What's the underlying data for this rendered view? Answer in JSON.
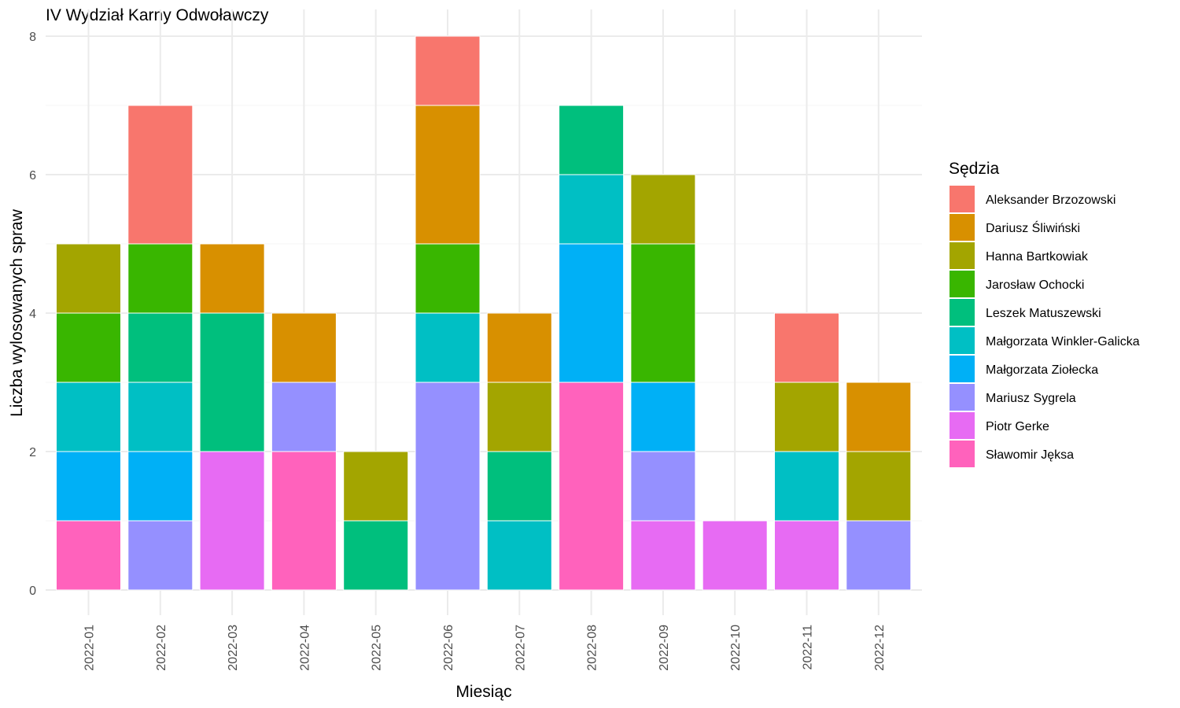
{
  "chart_data": {
    "type": "bar",
    "stacked": true,
    "title": "IV Wydział Karny Odwoławczy",
    "xlabel": "Miesiąc",
    "ylabel": "Liczba wylosowanych spraw",
    "ylim": [
      0,
      8
    ],
    "yticks": [
      0,
      2,
      4,
      6,
      8
    ],
    "grid": true,
    "legend_title": "Sędzia",
    "legend_position": "right",
    "categories": [
      "2022-01",
      "2022-02",
      "2022-03",
      "2022-04",
      "2022-05",
      "2022-06",
      "2022-07",
      "2022-08",
      "2022-09",
      "2022-10",
      "2022-11",
      "2022-12"
    ],
    "series": [
      {
        "name": "Aleksander Brzozowski",
        "color": "#F8766D",
        "values": [
          0,
          2,
          0,
          0,
          0,
          1,
          0,
          0,
          0,
          0,
          1,
          0
        ]
      },
      {
        "name": "Dariusz Śliwiński",
        "color": "#D89000",
        "values": [
          0,
          0,
          1,
          1,
          0,
          2,
          1,
          0,
          0,
          0,
          0,
          1
        ]
      },
      {
        "name": "Hanna Bartkowiak",
        "color": "#A3A500",
        "values": [
          1,
          0,
          0,
          0,
          1,
          0,
          1,
          0,
          1,
          0,
          1,
          1
        ]
      },
      {
        "name": "Jarosław Ochocki",
        "color": "#39B600",
        "values": [
          1,
          1,
          0,
          0,
          0,
          1,
          0,
          0,
          2,
          0,
          0,
          0
        ]
      },
      {
        "name": "Leszek Matuszewski",
        "color": "#00BF7D",
        "values": [
          0,
          1,
          2,
          0,
          1,
          0,
          1,
          1,
          0,
          0,
          0,
          0
        ]
      },
      {
        "name": "Małgorzata Winkler-Galicka",
        "color": "#00BFC4",
        "values": [
          1,
          1,
          0,
          0,
          0,
          1,
          1,
          1,
          0,
          0,
          1,
          0
        ]
      },
      {
        "name": "Małgorzata Ziołecka",
        "color": "#00B0F6",
        "values": [
          1,
          1,
          0,
          0,
          0,
          0,
          0,
          2,
          1,
          0,
          0,
          0
        ]
      },
      {
        "name": "Mariusz Sygrela",
        "color": "#9590FF",
        "values": [
          0,
          1,
          0,
          1,
          0,
          3,
          0,
          0,
          1,
          0,
          0,
          1
        ]
      },
      {
        "name": "Piotr Gerke",
        "color": "#E76BF3",
        "values": [
          0,
          0,
          2,
          0,
          0,
          0,
          0,
          0,
          1,
          1,
          1,
          0
        ]
      },
      {
        "name": "Sławomir Jęksa",
        "color": "#FF62BC",
        "values": [
          1,
          0,
          0,
          2,
          0,
          0,
          0,
          3,
          0,
          0,
          0,
          0
        ]
      }
    ]
  }
}
